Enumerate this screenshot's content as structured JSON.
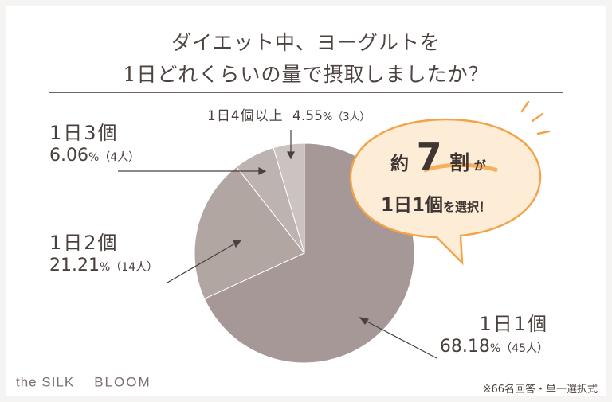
{
  "title": {
    "line1": "ダイエット中、ヨーグルトを",
    "line2": "1日どれくらいの量で摂取しましたか？"
  },
  "chart_data": {
    "type": "pie",
    "title": "ダイエット中、ヨーグルトを1日どれくらいの量で摂取しましたか？",
    "slices": [
      {
        "label": "1日1個",
        "percent": 68.18,
        "percent_text": "68.18",
        "count_text": "（45人）",
        "count": 45,
        "color": "#a59896"
      },
      {
        "label": "1日2個",
        "percent": 21.21,
        "percent_text": "21.21",
        "count_text": "（14人）",
        "count": 14,
        "color": "#b2a6a3"
      },
      {
        "label": "1日3個",
        "percent": 6.06,
        "percent_text": "6.06",
        "count_text": "（4人）",
        "count": 4,
        "color": "#bdb3b0"
      },
      {
        "label": "1日4個以上",
        "percent": 4.55,
        "percent_text": "4.55",
        "count_text": "（3人）",
        "count": 3,
        "color": "#cbc3c1"
      }
    ],
    "percent_unit": "%"
  },
  "callout": {
    "line1_a": "約",
    "line1_num": "7",
    "line1_b": "割",
    "line1_c": "が",
    "line2_a": "1日1個",
    "line2_b": "を選択！"
  },
  "brand": {
    "left": "the SILK",
    "right": "BLOOM"
  },
  "footnote": "※66名回答・単一選択式",
  "colors": {
    "accent_orange": "#f3a44b",
    "callout_fill": "#fdecd6",
    "text": "#4a403d"
  }
}
